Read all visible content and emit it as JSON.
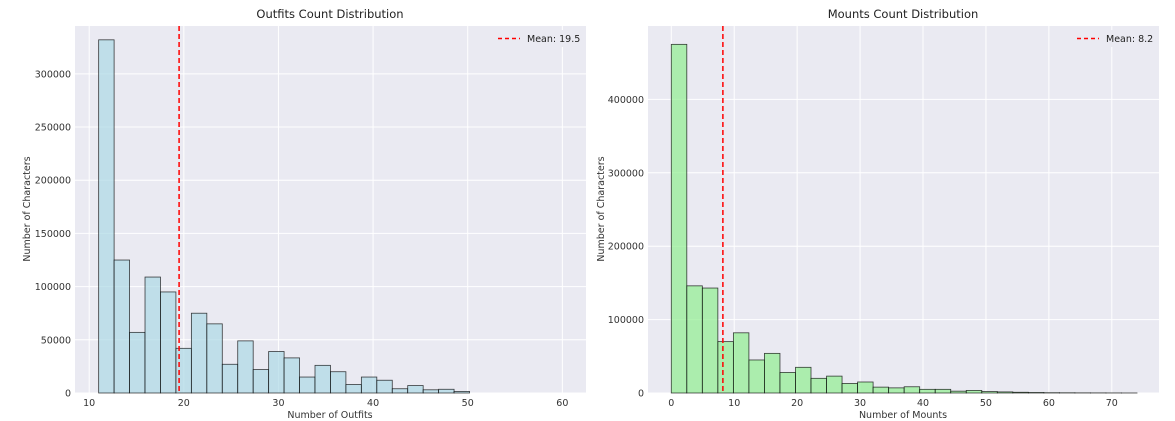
{
  "chart_data": [
    {
      "type": "bar",
      "title": "Outfits Count Distribution",
      "xlabel": "Number of Outfits",
      "ylabel": "Number of Characters",
      "xlim": [
        8.5,
        62.5
      ],
      "ylim": [
        0,
        345000
      ],
      "xticks": [
        10,
        20,
        30,
        40,
        50,
        60
      ],
      "yticks": [
        0,
        50000,
        100000,
        150000,
        200000,
        250000,
        300000
      ],
      "bin_start": 11,
      "bin_width": 1.633,
      "values": [
        332000,
        125000,
        57000,
        109000,
        95000,
        42000,
        75000,
        65000,
        27000,
        49000,
        22000,
        39000,
        33000,
        15000,
        26000,
        20000,
        8000,
        15000,
        12000,
        4000,
        7000,
        3000,
        3500,
        1500,
        0,
        0,
        0,
        0,
        0,
        0
      ],
      "bar_color": "#add8e6",
      "mean": 19.5,
      "mean_label": "Mean: 19.5",
      "mean_color": "#ff0000",
      "legend_position": "upper-right",
      "grid": true
    },
    {
      "type": "bar",
      "title": "Mounts Count Distribution",
      "xlabel": "Number of Mounts",
      "ylabel": "Number of Characters",
      "xlim": [
        -3.7,
        77.5
      ],
      "ylim": [
        0,
        500000
      ],
      "xticks": [
        0,
        10,
        20,
        30,
        40,
        50,
        60,
        70
      ],
      "yticks": [
        0,
        100000,
        200000,
        300000,
        400000
      ],
      "bin_start": 0,
      "bin_width": 2.467,
      "values": [
        475000,
        146000,
        143000,
        70000,
        82000,
        45000,
        54000,
        28000,
        35000,
        20000,
        23000,
        13000,
        15000,
        8000,
        7000,
        8500,
        5000,
        5000,
        2500,
        3500,
        2000,
        1500,
        1000,
        700,
        400,
        300,
        200,
        150,
        100,
        50
      ],
      "bar_color": "#90ee90",
      "mean": 8.2,
      "mean_label": "Mean: 8.2",
      "mean_color": "#ff0000",
      "legend_position": "upper-right",
      "grid": true
    }
  ]
}
